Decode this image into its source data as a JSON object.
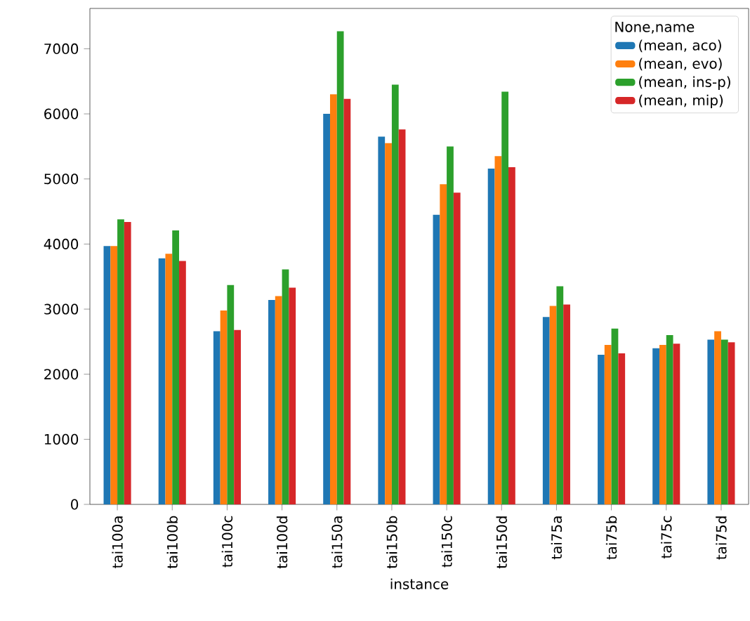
{
  "chart_data": {
    "type": "bar",
    "xlabel": "instance",
    "legend_title": "None,name",
    "categories": [
      "tai100a",
      "tai100b",
      "tai100c",
      "tai100d",
      "tai150a",
      "tai150b",
      "tai150c",
      "tai150d",
      "tai75a",
      "tai75b",
      "tai75c",
      "tai75d"
    ],
    "series": [
      {
        "name": "(mean, aco)",
        "color": "#1f77b4",
        "values": [
          3970,
          3780,
          2660,
          3140,
          6000,
          5650,
          4450,
          5160,
          2880,
          2300,
          2400,
          2530
        ]
      },
      {
        "name": "(mean, evo)",
        "color": "#ff7f0e",
        "values": [
          3970,
          3850,
          2980,
          3200,
          6300,
          5550,
          4920,
          5350,
          3050,
          2450,
          2450,
          2660
        ]
      },
      {
        "name": "(mean, ins-p)",
        "color": "#2ca02c",
        "values": [
          4380,
          4210,
          3370,
          3610,
          7270,
          6450,
          5500,
          6340,
          3350,
          2700,
          2600,
          2530
        ]
      },
      {
        "name": "(mean, mip)",
        "color": "#d62728",
        "values": [
          4340,
          3740,
          2680,
          3330,
          6230,
          5760,
          4790,
          5180,
          3070,
          2320,
          2470,
          2490
        ]
      }
    ],
    "ylim": [
      0,
      7620
    ],
    "yticks": [
      0,
      1000,
      2000,
      3000,
      4000,
      5000,
      6000,
      7000
    ],
    "legend": "top right"
  }
}
